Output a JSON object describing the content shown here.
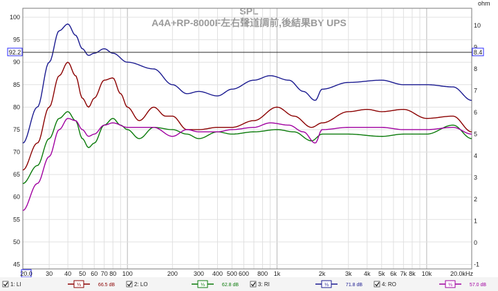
{
  "chart_data": {
    "type": "line",
    "title": "SPL",
    "subtitle": "A4A+RP-8000F左右聲道調前,後結果BY UPS",
    "left_unit": "",
    "right_unit": "ohm",
    "xscale": "log",
    "xlim": [
      20,
      20000
    ],
    "ylim": [
      44,
      102
    ],
    "right_ylim": [
      -1.2,
      10.8
    ],
    "x_ticks": [
      {
        "v": 30,
        "t": "30"
      },
      {
        "v": 40,
        "t": "40"
      },
      {
        "v": 50,
        "t": "50"
      },
      {
        "v": 60,
        "t": "60"
      },
      {
        "v": 70,
        "t": "70"
      },
      {
        "v": 80,
        "t": "80"
      },
      {
        "v": 100,
        "t": "100"
      },
      {
        "v": 200,
        "t": "200"
      },
      {
        "v": 300,
        "t": "300"
      },
      {
        "v": 400,
        "t": "400"
      },
      {
        "v": 500,
        "t": "500"
      },
      {
        "v": 600,
        "t": "600"
      },
      {
        "v": 800,
        "t": "800"
      },
      {
        "v": 1000,
        "t": "1k"
      },
      {
        "v": 2000,
        "t": "2k"
      },
      {
        "v": 3000,
        "t": "3k"
      },
      {
        "v": 4000,
        "t": "4k"
      },
      {
        "v": 5000,
        "t": "5k"
      },
      {
        "v": 6000,
        "t": "6k"
      },
      {
        "v": 7000,
        "t": "7k"
      },
      {
        "v": 8000,
        "t": "8k"
      },
      {
        "v": 10000,
        "t": "10k"
      },
      {
        "v": 20000,
        "t": "20.0kHz"
      }
    ],
    "x_cursor_label": "20.0",
    "y_ticks": [
      45,
      50,
      55,
      60,
      65,
      70,
      75,
      80,
      85,
      90,
      95,
      100
    ],
    "right_ticks": [
      "-1",
      "0",
      "1",
      "2",
      "3",
      "4",
      "5",
      "6",
      "7",
      "8",
      "9",
      "10"
    ],
    "cursor": {
      "left_label": "92.2",
      "right_label": "8.4",
      "y": 92.2
    },
    "grid": true,
    "series": [
      {
        "name": "1: LI",
        "value_label": "66.5 dB",
        "color": "#8b0000",
        "points": [
          [
            20,
            66
          ],
          [
            25,
            72
          ],
          [
            30,
            80
          ],
          [
            35,
            87
          ],
          [
            40,
            90
          ],
          [
            45,
            87
          ],
          [
            50,
            82
          ],
          [
            55,
            80
          ],
          [
            60,
            82
          ],
          [
            70,
            86
          ],
          [
            80,
            86.5
          ],
          [
            90,
            83
          ],
          [
            100,
            80
          ],
          [
            120,
            77
          ],
          [
            150,
            80
          ],
          [
            180,
            78
          ],
          [
            200,
            78
          ],
          [
            250,
            75
          ],
          [
            300,
            75
          ],
          [
            400,
            75.5
          ],
          [
            500,
            75.5
          ],
          [
            700,
            77
          ],
          [
            1000,
            80
          ],
          [
            1300,
            78
          ],
          [
            1700,
            75.5
          ],
          [
            2000,
            76.5
          ],
          [
            3000,
            79
          ],
          [
            4000,
            79.5
          ],
          [
            5000,
            79
          ],
          [
            7000,
            79.5
          ],
          [
            10000,
            77.5
          ],
          [
            15000,
            78
          ],
          [
            20000,
            74.5
          ]
        ]
      },
      {
        "name": "2: LO",
        "value_label": "62.8 dB",
        "color": "#0a7a0a",
        "points": [
          [
            20,
            63
          ],
          [
            25,
            67
          ],
          [
            30,
            73
          ],
          [
            35,
            77.5
          ],
          [
            40,
            79
          ],
          [
            45,
            77
          ],
          [
            50,
            73
          ],
          [
            55,
            71
          ],
          [
            60,
            72
          ],
          [
            70,
            76
          ],
          [
            80,
            77.5
          ],
          [
            90,
            76
          ],
          [
            100,
            75
          ],
          [
            120,
            73
          ],
          [
            150,
            75.5
          ],
          [
            200,
            75
          ],
          [
            250,
            74
          ],
          [
            300,
            73
          ],
          [
            400,
            74.5
          ],
          [
            500,
            74
          ],
          [
            700,
            74.5
          ],
          [
            1000,
            75
          ],
          [
            1300,
            74.5
          ],
          [
            1700,
            72.5
          ],
          [
            2000,
            74
          ],
          [
            3000,
            74
          ],
          [
            5000,
            73.5
          ],
          [
            7000,
            74
          ],
          [
            10000,
            74
          ],
          [
            15000,
            76
          ],
          [
            20000,
            73
          ]
        ]
      },
      {
        "name": "3: RI",
        "value_label": "71.8 dB",
        "color": "#1a1a90",
        "points": [
          [
            20,
            72
          ],
          [
            25,
            80
          ],
          [
            30,
            90
          ],
          [
            35,
            97
          ],
          [
            40,
            98.5
          ],
          [
            45,
            96
          ],
          [
            50,
            93
          ],
          [
            55,
            91.5
          ],
          [
            60,
            92
          ],
          [
            70,
            93
          ],
          [
            80,
            92
          ],
          [
            100,
            90
          ],
          [
            150,
            88.5
          ],
          [
            200,
            85
          ],
          [
            250,
            83
          ],
          [
            300,
            83.5
          ],
          [
            400,
            82.5
          ],
          [
            500,
            84
          ],
          [
            700,
            86
          ],
          [
            900,
            87
          ],
          [
            1200,
            86
          ],
          [
            1500,
            83.5
          ],
          [
            1800,
            81.5
          ],
          [
            2000,
            84
          ],
          [
            3000,
            85.5
          ],
          [
            5000,
            86
          ],
          [
            7000,
            85
          ],
          [
            10000,
            85
          ],
          [
            15000,
            84.5
          ],
          [
            20000,
            81.5
          ]
        ]
      },
      {
        "name": "4: RO",
        "value_label": "57.0 dB",
        "color": "#a000a0",
        "points": [
          [
            20,
            57
          ],
          [
            25,
            63
          ],
          [
            30,
            69
          ],
          [
            35,
            75
          ],
          [
            40,
            77.5
          ],
          [
            45,
            77
          ],
          [
            50,
            75
          ],
          [
            55,
            73.5
          ],
          [
            60,
            74
          ],
          [
            70,
            76
          ],
          [
            80,
            76.5
          ],
          [
            100,
            75.5
          ],
          [
            150,
            75.5
          ],
          [
            200,
            73.5
          ],
          [
            250,
            75
          ],
          [
            300,
            74.5
          ],
          [
            400,
            74.5
          ],
          [
            500,
            75
          ],
          [
            700,
            75.5
          ],
          [
            900,
            76.5
          ],
          [
            1200,
            76
          ],
          [
            1500,
            74.5
          ],
          [
            1800,
            72
          ],
          [
            2000,
            75
          ],
          [
            3000,
            75.5
          ],
          [
            5000,
            75.5
          ],
          [
            7000,
            75
          ],
          [
            10000,
            75
          ],
          [
            15000,
            75.5
          ],
          [
            20000,
            74
          ]
        ]
      }
    ]
  }
}
